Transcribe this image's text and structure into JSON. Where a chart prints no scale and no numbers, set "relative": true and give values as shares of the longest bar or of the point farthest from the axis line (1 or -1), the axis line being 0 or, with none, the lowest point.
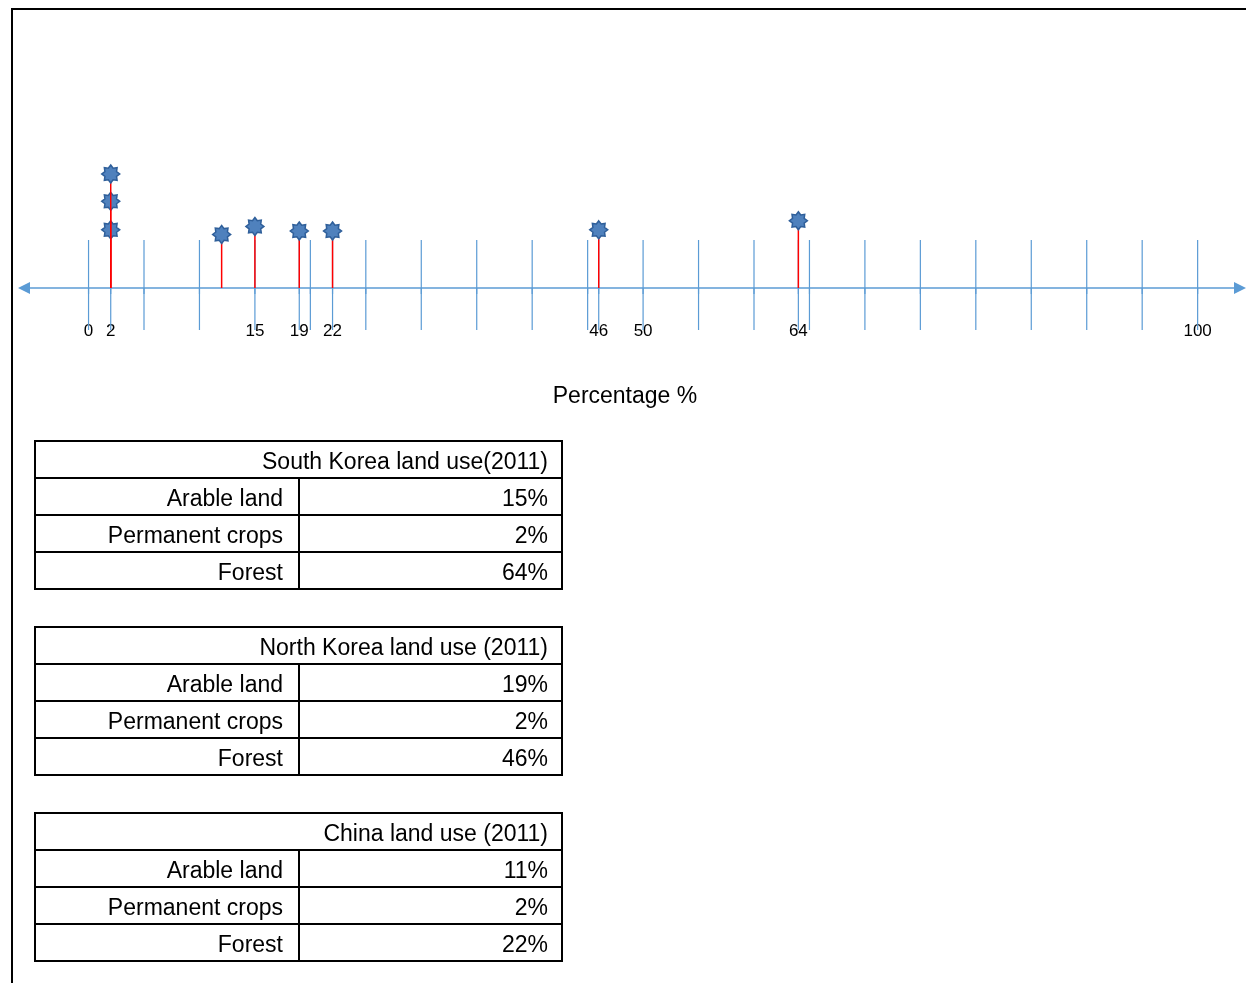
{
  "chart_data": [
    {
      "type": "lollipop",
      "xlabel": "Percentage %",
      "relative": true,
      "tick_labels": "x",
      "marker": "star",
      "grid": "x",
      "x": [
        2,
        2,
        2,
        12,
        15,
        19,
        22,
        46,
        64
      ],
      "values": [
        0.51,
        0.76,
        1,
        0.47,
        0.54,
        0.5,
        0.5,
        0.51,
        0.59
      ],
      "color": "#4f81bd",
      "xlim": [
        -6,
        104
      ],
      "xticks": [
        0,
        2,
        {
          "value": 5,
          "label": null
        },
        {
          "value": 10,
          "label": null
        },
        15,
        19,
        {
          "value": 20,
          "label": null
        },
        22,
        {
          "value": 25,
          "label": null
        },
        {
          "value": 30,
          "label": null
        },
        {
          "value": 35,
          "label": null
        },
        {
          "value": 40,
          "label": null
        },
        {
          "value": 45,
          "label": null
        },
        46,
        50,
        {
          "value": 55,
          "label": null
        },
        {
          "value": 60,
          "label": null
        },
        64,
        {
          "value": 65,
          "label": null
        },
        {
          "value": 70,
          "label": null
        },
        {
          "value": 75,
          "label": null
        },
        {
          "value": 80,
          "label": null
        },
        {
          "value": 85,
          "label": null
        },
        {
          "value": 90,
          "label": null
        },
        {
          "value": 95,
          "label": null
        },
        100
      ]
    },
    {
      "type": "other",
      "title": "South Korea land use(2011)",
      "categories": [
        "Arable land",
        "Permanent crops",
        "Forest"
      ],
      "value_labels": [
        "15%",
        "2%",
        "64%"
      ]
    },
    {
      "type": "other",
      "title": "North Korea land use (2011)",
      "categories": [
        "Arable land",
        "Permanent crops",
        "Forest"
      ],
      "value_labels": [
        "19%",
        "2%",
        "46%"
      ]
    },
    {
      "type": "other",
      "title": "China land use (2011)",
      "categories": [
        "Arable land",
        "Permanent crops",
        "Forest"
      ],
      "value_labels": [
        "11%",
        "2%",
        "22%"
      ]
    }
  ]
}
